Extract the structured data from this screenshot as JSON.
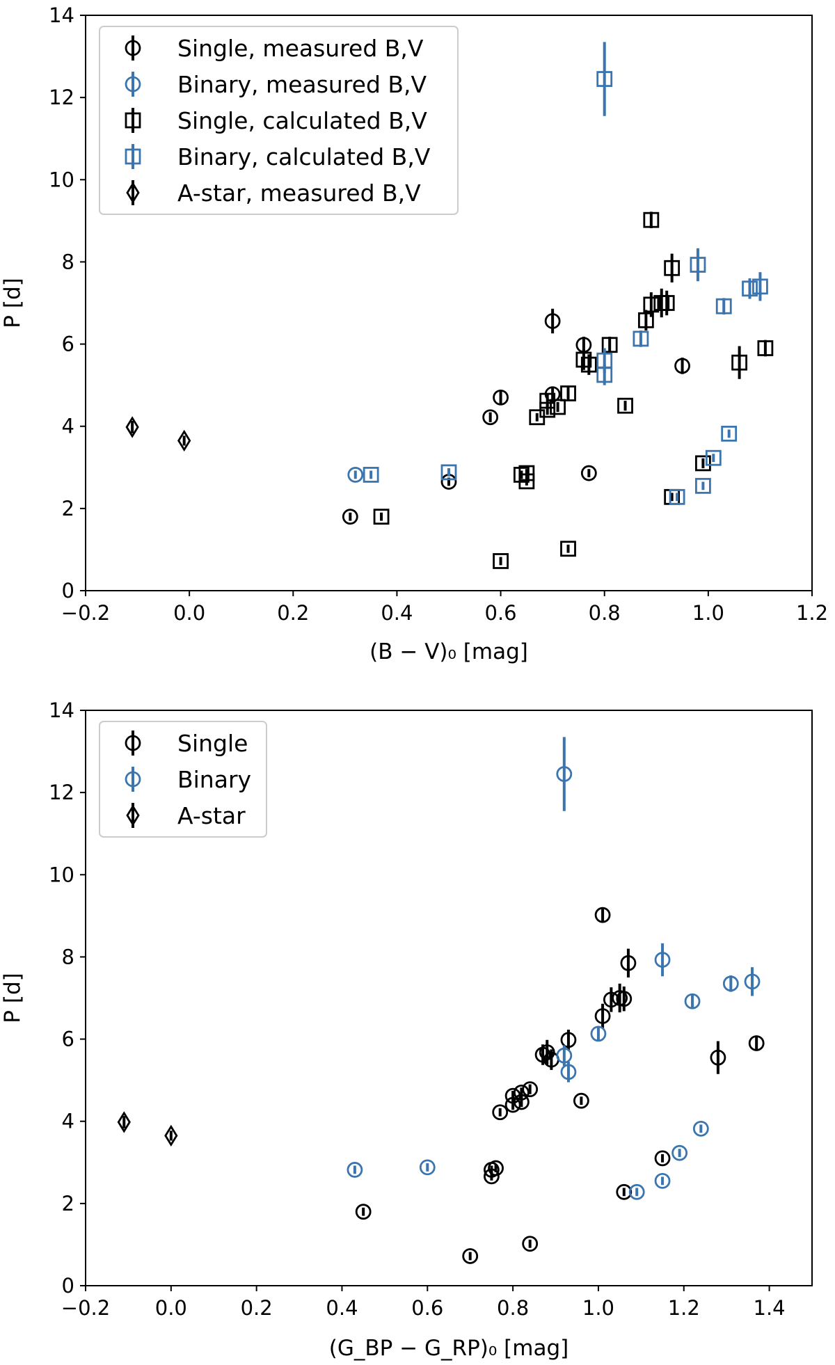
{
  "colors": {
    "single": "#000000",
    "binary": "#3a75b0",
    "astar": "#000000"
  },
  "chart_data": [
    {
      "type": "scatter",
      "title": "",
      "xlabel": "(B − V)₀ [mag]",
      "ylabel": "P [d]",
      "xlim": [
        -0.2,
        1.2
      ],
      "ylim": [
        0,
        14
      ],
      "xticks": [
        "−0.2",
        "0.0",
        "0.2",
        "0.4",
        "0.6",
        "0.8",
        "1.0",
        "1.2"
      ],
      "yticks": [
        "0",
        "2",
        "4",
        "6",
        "8",
        "10",
        "12",
        "14"
      ],
      "grid": false,
      "legend_position": "top-left",
      "series": [
        {
          "name": "Single, measured B,V",
          "color_key": "single",
          "marker": "circle",
          "points": [
            {
              "x": 0.31,
              "y": 1.8,
              "e": 0.1
            },
            {
              "x": 0.5,
              "y": 2.65,
              "e": 0.1
            },
            {
              "x": 0.58,
              "y": 4.22,
              "e": 0.12
            },
            {
              "x": 0.6,
              "y": 4.7,
              "e": 0.15
            },
            {
              "x": 0.7,
              "y": 6.56,
              "e": 0.3
            },
            {
              "x": 0.7,
              "y": 4.78,
              "e": 0.15
            },
            {
              "x": 0.76,
              "y": 5.98,
              "e": 0.2
            },
            {
              "x": 0.77,
              "y": 2.86,
              "e": 0.1
            },
            {
              "x": 0.95,
              "y": 5.47,
              "e": 0.2
            }
          ]
        },
        {
          "name": "Binary, measured B,V",
          "color_key": "binary",
          "marker": "circle",
          "points": [
            {
              "x": 0.32,
              "y": 2.82,
              "e": 0.1
            }
          ]
        },
        {
          "name": "Single, calculated B,V",
          "color_key": "single",
          "marker": "square",
          "points": [
            {
              "x": 0.37,
              "y": 1.8,
              "e": 0.1
            },
            {
              "x": 0.6,
              "y": 0.72,
              "e": 0.1
            },
            {
              "x": 0.64,
              "y": 2.82,
              "e": 0.1
            },
            {
              "x": 0.65,
              "y": 2.66,
              "e": 0.1
            },
            {
              "x": 0.65,
              "y": 2.86,
              "e": 0.1
            },
            {
              "x": 0.67,
              "y": 4.22,
              "e": 0.1
            },
            {
              "x": 0.69,
              "y": 4.4,
              "e": 0.12
            },
            {
              "x": 0.69,
              "y": 4.62,
              "e": 0.15
            },
            {
              "x": 0.71,
              "y": 4.47,
              "e": 0.12
            },
            {
              "x": 0.73,
              "y": 4.8,
              "e": 0.15
            },
            {
              "x": 0.73,
              "y": 1.02,
              "e": 0.1
            },
            {
              "x": 0.76,
              "y": 5.62,
              "e": 0.25
            },
            {
              "x": 0.77,
              "y": 5.5,
              "e": 0.25
            },
            {
              "x": 0.81,
              "y": 5.98,
              "e": 0.2
            },
            {
              "x": 0.84,
              "y": 4.5,
              "e": 0.12
            },
            {
              "x": 0.88,
              "y": 6.58,
              "e": 0.25
            },
            {
              "x": 0.89,
              "y": 6.96,
              "e": 0.3
            },
            {
              "x": 0.89,
              "y": 9.02,
              "e": 0.2
            },
            {
              "x": 0.91,
              "y": 7.0,
              "e": 0.35
            },
            {
              "x": 0.92,
              "y": 7.0,
              "e": 0.3
            },
            {
              "x": 0.93,
              "y": 7.85,
              "e": 0.35
            },
            {
              "x": 0.93,
              "y": 2.28,
              "e": 0.1
            },
            {
              "x": 0.99,
              "y": 3.1,
              "e": 0.12
            },
            {
              "x": 1.06,
              "y": 5.55,
              "e": 0.4
            },
            {
              "x": 1.11,
              "y": 5.9,
              "e": 0.2
            }
          ]
        },
        {
          "name": "Binary, calculated B,V",
          "color_key": "binary",
          "marker": "square",
          "points": [
            {
              "x": 0.35,
              "y": 2.82,
              "e": 0.1
            },
            {
              "x": 0.5,
              "y": 2.88,
              "e": 0.1
            },
            {
              "x": 0.8,
              "y": 12.45,
              "e": 0.9
            },
            {
              "x": 0.8,
              "y": 5.6,
              "e": 0.3
            },
            {
              "x": 0.8,
              "y": 5.25,
              "e": 0.25
            },
            {
              "x": 0.87,
              "y": 6.13,
              "e": 0.2
            },
            {
              "x": 0.94,
              "y": 2.28,
              "e": 0.1
            },
            {
              "x": 0.98,
              "y": 7.93,
              "e": 0.4
            },
            {
              "x": 0.99,
              "y": 2.55,
              "e": 0.1
            },
            {
              "x": 1.01,
              "y": 3.23,
              "e": 0.1
            },
            {
              "x": 1.03,
              "y": 6.92,
              "e": 0.2
            },
            {
              "x": 1.04,
              "y": 3.82,
              "e": 0.1
            },
            {
              "x": 1.08,
              "y": 7.35,
              "e": 0.25
            },
            {
              "x": 1.1,
              "y": 7.4,
              "e": 0.35
            }
          ]
        },
        {
          "name": "A-star, measured B,V",
          "color_key": "astar",
          "marker": "diamond",
          "points": [
            {
              "x": -0.11,
              "y": 3.98,
              "e": 0.15
            },
            {
              "x": -0.01,
              "y": 3.65,
              "e": 0.12
            }
          ]
        }
      ]
    },
    {
      "type": "scatter",
      "title": "",
      "xlabel": "(G_BP − G_RP)₀ [mag]",
      "ylabel": "P [d]",
      "xlim": [
        -0.2,
        1.5
      ],
      "ylim": [
        0,
        14
      ],
      "xticks": [
        "−0.2",
        "0.0",
        "0.2",
        "0.4",
        "0.6",
        "0.8",
        "1.0",
        "1.2",
        "1.4"
      ],
      "yticks": [
        "0",
        "2",
        "4",
        "6",
        "8",
        "10",
        "12",
        "14"
      ],
      "grid": false,
      "legend_position": "top-left",
      "series": [
        {
          "name": "Single",
          "color_key": "single",
          "marker": "circle",
          "points": [
            {
              "x": 0.45,
              "y": 1.8,
              "e": 0.1
            },
            {
              "x": 0.7,
              "y": 0.72,
              "e": 0.1
            },
            {
              "x": 0.75,
              "y": 2.82,
              "e": 0.1
            },
            {
              "x": 0.75,
              "y": 2.66,
              "e": 0.1
            },
            {
              "x": 0.76,
              "y": 2.86,
              "e": 0.1
            },
            {
              "x": 0.77,
              "y": 4.22,
              "e": 0.1
            },
            {
              "x": 0.8,
              "y": 4.62,
              "e": 0.12
            },
            {
              "x": 0.8,
              "y": 4.4,
              "e": 0.12
            },
            {
              "x": 0.82,
              "y": 4.7,
              "e": 0.12
            },
            {
              "x": 0.82,
              "y": 4.47,
              "e": 0.12
            },
            {
              "x": 0.84,
              "y": 4.78,
              "e": 0.12
            },
            {
              "x": 0.84,
              "y": 1.02,
              "e": 0.1
            },
            {
              "x": 0.87,
              "y": 5.62,
              "e": 0.25
            },
            {
              "x": 0.88,
              "y": 5.68,
              "e": 0.3
            },
            {
              "x": 0.89,
              "y": 5.5,
              "e": 0.25
            },
            {
              "x": 0.93,
              "y": 5.98,
              "e": 0.25
            },
            {
              "x": 0.96,
              "y": 4.5,
              "e": 0.1
            },
            {
              "x": 1.01,
              "y": 9.02,
              "e": 0.15
            },
            {
              "x": 1.01,
              "y": 6.56,
              "e": 0.3
            },
            {
              "x": 1.03,
              "y": 6.96,
              "e": 0.3
            },
            {
              "x": 1.05,
              "y": 7.0,
              "e": 0.35
            },
            {
              "x": 1.06,
              "y": 6.98,
              "e": 0.3
            },
            {
              "x": 1.06,
              "y": 2.28,
              "e": 0.1
            },
            {
              "x": 1.07,
              "y": 7.85,
              "e": 0.35
            },
            {
              "x": 1.15,
              "y": 3.1,
              "e": 0.1
            },
            {
              "x": 1.28,
              "y": 5.55,
              "e": 0.4
            },
            {
              "x": 1.37,
              "y": 5.9,
              "e": 0.15
            }
          ]
        },
        {
          "name": "Binary",
          "color_key": "binary",
          "marker": "circle",
          "points": [
            {
              "x": 0.43,
              "y": 2.82,
              "e": 0.1
            },
            {
              "x": 0.6,
              "y": 2.88,
              "e": 0.1
            },
            {
              "x": 0.92,
              "y": 12.45,
              "e": 0.9
            },
            {
              "x": 0.92,
              "y": 5.6,
              "e": 0.25
            },
            {
              "x": 0.93,
              "y": 5.2,
              "e": 0.25
            },
            {
              "x": 1.0,
              "y": 6.13,
              "e": 0.15
            },
            {
              "x": 1.09,
              "y": 2.28,
              "e": 0.1
            },
            {
              "x": 1.15,
              "y": 7.93,
              "e": 0.4
            },
            {
              "x": 1.15,
              "y": 2.55,
              "e": 0.1
            },
            {
              "x": 1.19,
              "y": 3.23,
              "e": 0.1
            },
            {
              "x": 1.22,
              "y": 6.92,
              "e": 0.15
            },
            {
              "x": 1.24,
              "y": 3.82,
              "e": 0.1
            },
            {
              "x": 1.31,
              "y": 7.35,
              "e": 0.2
            },
            {
              "x": 1.36,
              "y": 7.4,
              "e": 0.35
            }
          ]
        },
        {
          "name": "A-star",
          "color_key": "astar",
          "marker": "diamond",
          "points": [
            {
              "x": -0.11,
              "y": 3.98,
              "e": 0.15
            },
            {
              "x": 0.0,
              "y": 3.65,
              "e": 0.12
            }
          ]
        }
      ]
    }
  ]
}
